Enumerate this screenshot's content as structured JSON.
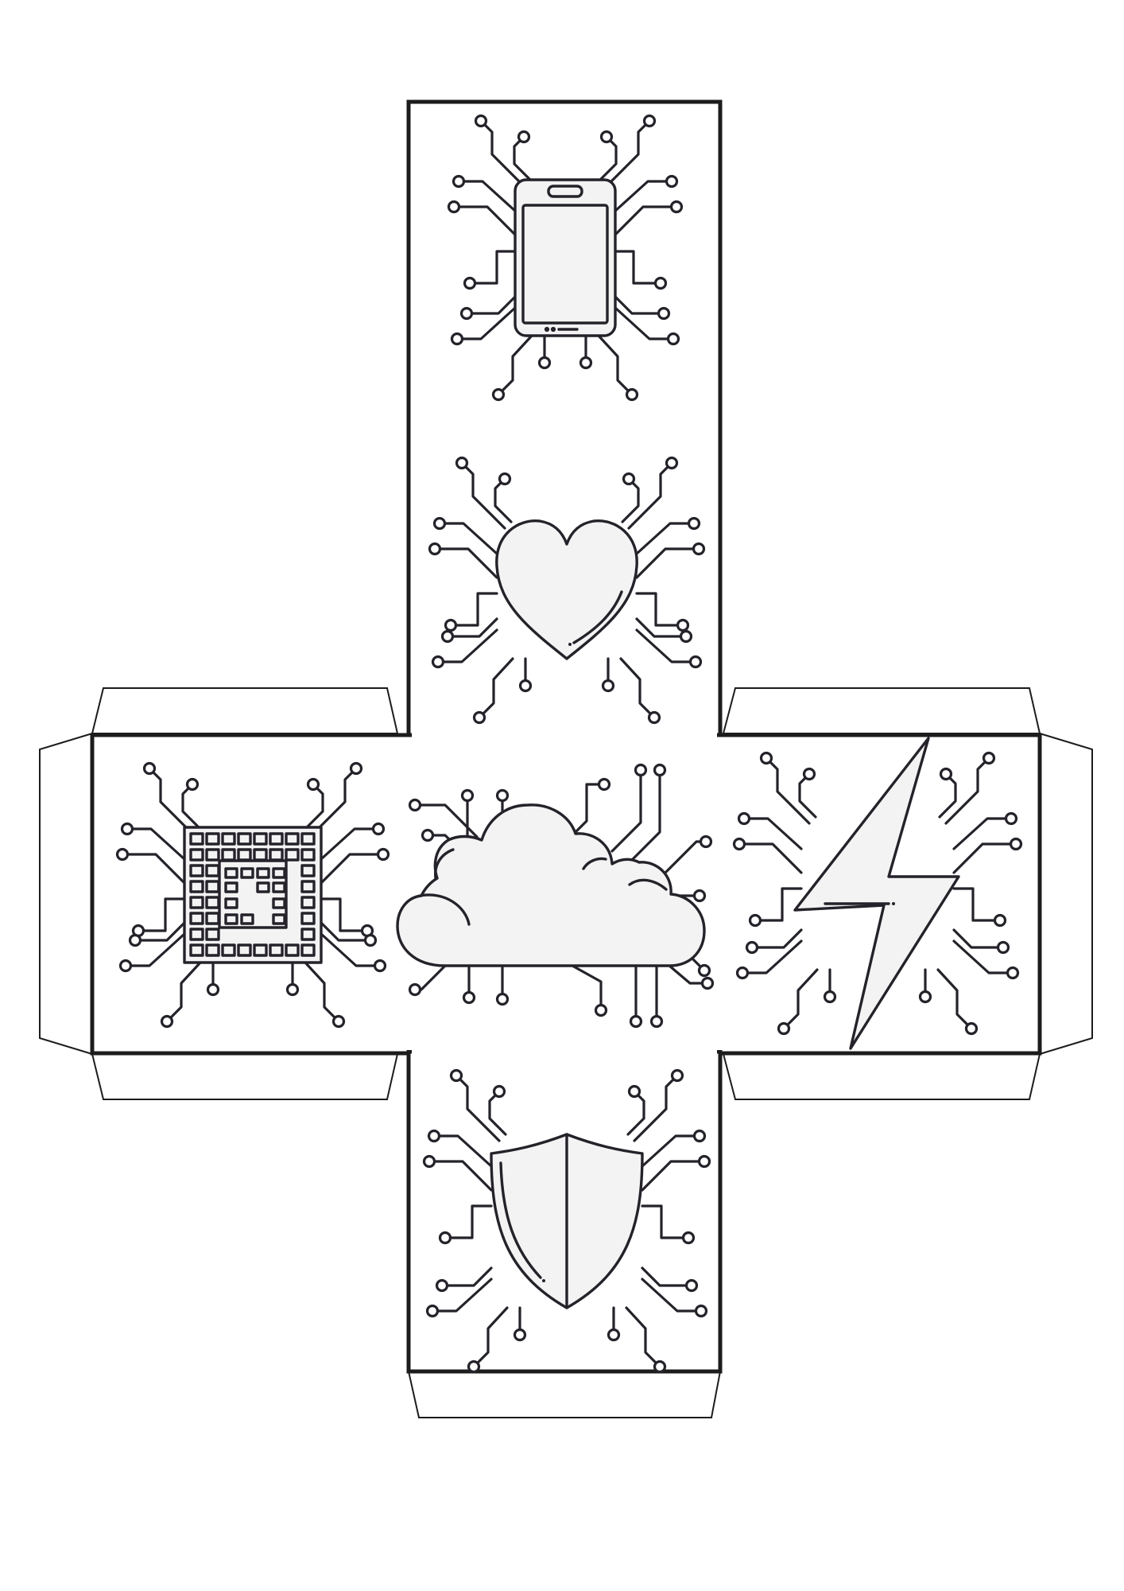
{
  "colors": {
    "line": "#25222a",
    "icon_fill": "#f3f3f3",
    "paper": "#ffffff"
  },
  "faces": [
    {
      "id": "top",
      "icon": "smartphone-icon"
    },
    {
      "id": "upper-middle",
      "icon": "heart-icon"
    },
    {
      "id": "left",
      "icon": "microchip-icon"
    },
    {
      "id": "center",
      "icon": "cloud-icon"
    },
    {
      "id": "right",
      "icon": "lightning-bolt-icon"
    },
    {
      "id": "bottom",
      "icon": "shield-icon"
    }
  ],
  "glue_tabs": 7
}
